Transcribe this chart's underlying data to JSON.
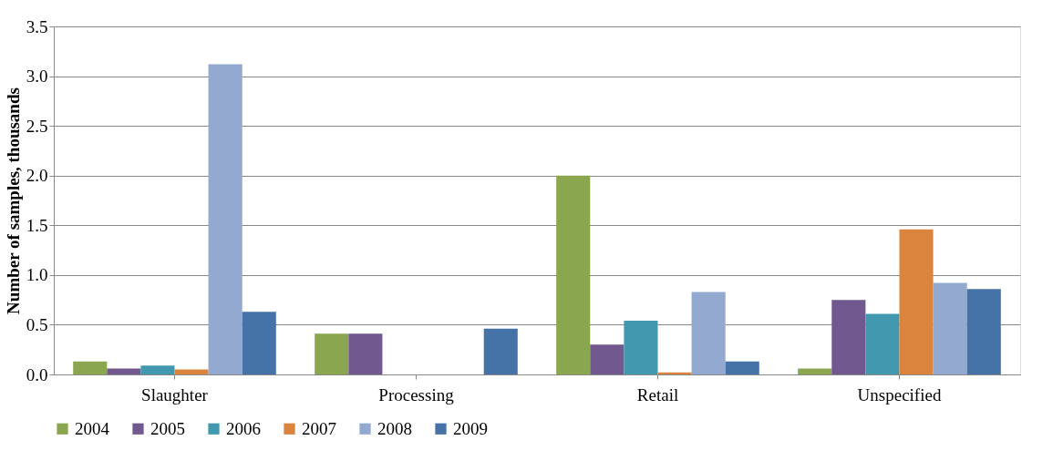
{
  "chart_data": {
    "type": "bar",
    "ylabel": "Number  of samples, thousands",
    "categories": [
      "Slaughter",
      "Processing",
      "Retail",
      "Unspecified"
    ],
    "series": [
      {
        "name": "2004",
        "color": "#8aa64e",
        "values": [
          0.13,
          0.41,
          2.0,
          0.06
        ]
      },
      {
        "name": "2005",
        "color": "#71588f",
        "values": [
          0.06,
          0.41,
          0.3,
          0.75
        ]
      },
      {
        "name": "2006",
        "color": "#4198af",
        "values": [
          0.09,
          0.0,
          0.54,
          0.61
        ]
      },
      {
        "name": "2007",
        "color": "#db843d",
        "values": [
          0.05,
          0.0,
          0.02,
          1.46
        ]
      },
      {
        "name": "2008",
        "color": "#93a9cf",
        "values": [
          3.12,
          0.0,
          0.83,
          0.92
        ]
      },
      {
        "name": "2009",
        "color": "#4572a7",
        "values": [
          0.63,
          0.46,
          0.13,
          0.86
        ]
      }
    ],
    "ylim": [
      0,
      3.5
    ],
    "yticks": [
      {
        "value": 0,
        "label": "0.0"
      },
      {
        "value": 0.5,
        "label": "0.5"
      },
      {
        "value": 1,
        "label": "1.0"
      },
      {
        "value": 1.5,
        "label": "1.5"
      },
      {
        "value": 2,
        "label": "2.0"
      },
      {
        "value": 2.5,
        "label": "2.5"
      },
      {
        "value": 3,
        "label": "3.0"
      },
      {
        "value": 3.5,
        "label": "3.5"
      }
    ],
    "grid": "y",
    "legend": "bottom"
  }
}
